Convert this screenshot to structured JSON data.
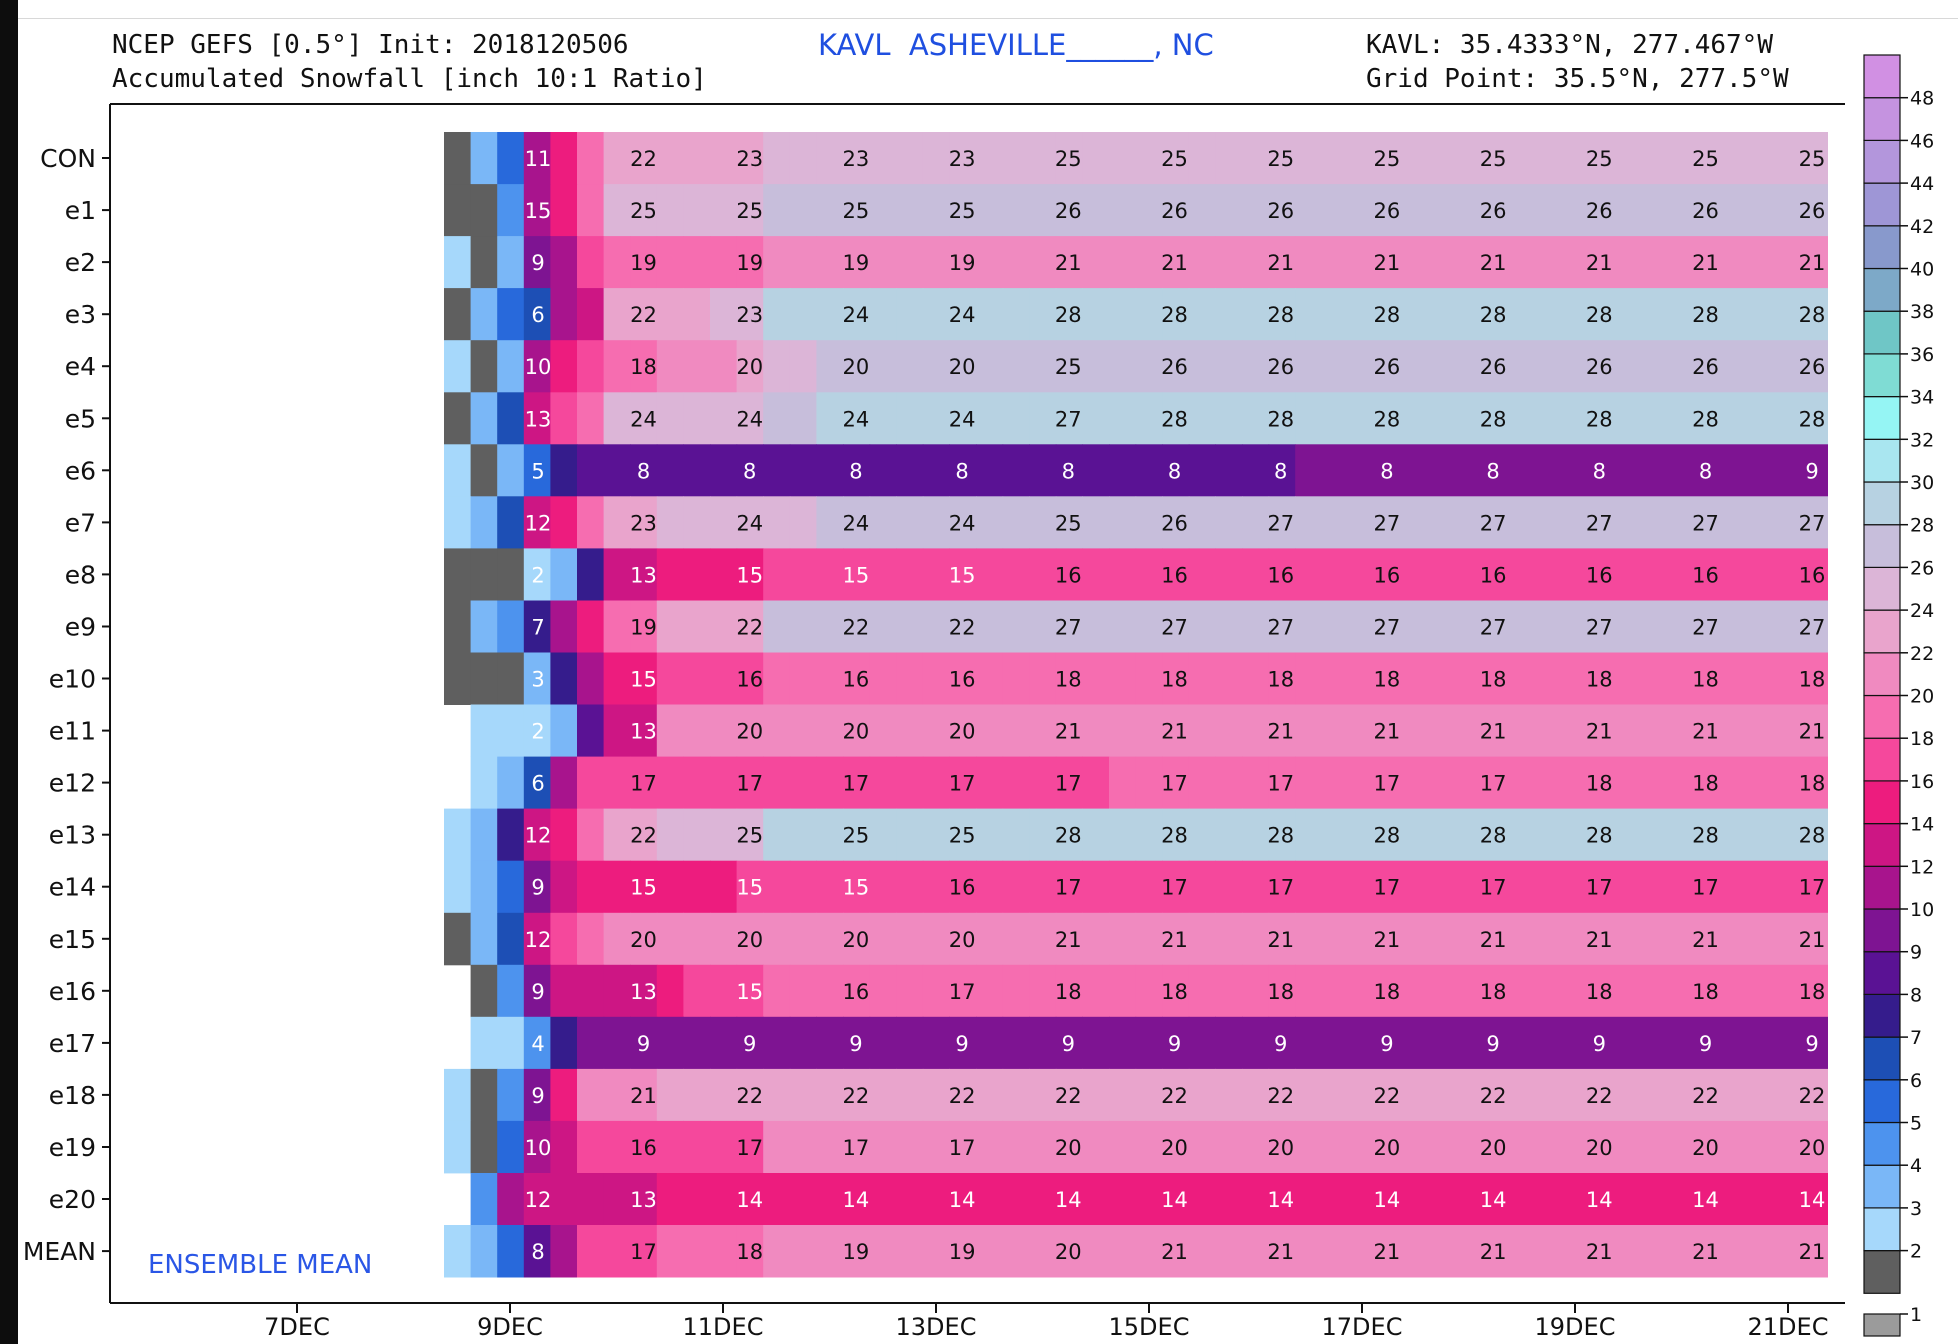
{
  "header": {
    "model_line": "NCEP GEFS [0.5°] Init: 2018120506",
    "variable_line": "Accumulated Snowfall [inch 10:1 Ratio]",
    "station": "KAVL  ASHEVILLE______, NC",
    "coords_line": "KAVL: 35.4333°N, 277.467°W",
    "grid_line": "Grid Point: 35.5°N, 277.5°W"
  },
  "chart_data": {
    "type": "heatmap",
    "title": "Accumulated Snowfall [inch 10:1 Ratio]",
    "annotation": "ENSEMBLE MEAN",
    "x_ticks": [
      "7DEC",
      "9DEC",
      "11DEC",
      "13DEC",
      "15DEC",
      "17DEC",
      "19DEC",
      "21DEC"
    ],
    "rows": [
      {
        "name": "CON",
        "cells": [
          1,
          3,
          5,
          11,
          14,
          18,
          22,
          22,
          23,
          23,
          23,
          23,
          25,
          25,
          25,
          25,
          25,
          25,
          25,
          25,
          25,
          25,
          25,
          25,
          25,
          25,
          25,
          25,
          25,
          25,
          25,
          25,
          25
        ]
      },
      {
        "name": "e1",
        "cells": [
          1,
          1,
          4,
          10,
          15,
          19,
          25,
          25,
          25,
          25,
          25,
          25,
          26,
          26,
          26,
          26,
          26,
          26,
          26,
          26,
          26,
          26,
          26,
          26,
          26,
          26,
          26,
          26,
          26,
          26,
          26,
          26,
          26
        ]
      },
      {
        "name": "e2",
        "cells": [
          2,
          1,
          3,
          9,
          11,
          16,
          19,
          19,
          19,
          19,
          19,
          19,
          21,
          21,
          21,
          21,
          21,
          21,
          21,
          21,
          21,
          21,
          21,
          21,
          21,
          21,
          21,
          21,
          21,
          21,
          21,
          21,
          21
        ]
      },
      {
        "name": "e3",
        "cells": [
          1,
          3,
          5,
          6,
          10,
          12,
          22,
          22,
          23,
          23,
          24,
          24,
          28,
          28,
          28,
          28,
          28,
          28,
          28,
          28,
          28,
          28,
          28,
          28,
          28,
          28,
          28,
          28,
          28,
          28,
          28,
          28,
          28
        ]
      },
      {
        "name": "e4",
        "cells": [
          2,
          1,
          3,
          10,
          14,
          16,
          18,
          18,
          20,
          20,
          20,
          22,
          25,
          25,
          26,
          26,
          26,
          26,
          26,
          26,
          26,
          26,
          26,
          26,
          26,
          26,
          26,
          26,
          26,
          26,
          26,
          26,
          26
        ]
      },
      {
        "name": "e5",
        "cells": [
          1,
          3,
          6,
          13,
          16,
          18,
          24,
          24,
          24,
          24,
          24,
          24,
          27,
          27,
          28,
          28,
          28,
          28,
          28,
          28,
          28,
          28,
          28,
          28,
          28,
          28,
          28,
          28,
          28,
          28,
          28,
          28,
          28
        ]
      },
      {
        "name": "e6",
        "cells": [
          2,
          1,
          3,
          5,
          7,
          8,
          8,
          8,
          8,
          8,
          8,
          8,
          8,
          8,
          8,
          8,
          8,
          8,
          8,
          8,
          8,
          8,
          8,
          8,
          8,
          8,
          8,
          8,
          8,
          8,
          8,
          8,
          9
        ]
      },
      {
        "name": "e7",
        "cells": [
          2,
          3,
          6,
          12,
          15,
          18,
          23,
          23,
          24,
          24,
          24,
          24,
          25,
          25,
          26,
          26,
          27,
          27,
          27,
          27,
          27,
          27,
          27,
          27,
          27,
          27,
          27,
          27,
          27,
          27,
          27,
          27,
          27
        ]
      },
      {
        "name": "e8",
        "cells": [
          1,
          1,
          1,
          2,
          3,
          7,
          13,
          13,
          15,
          15,
          15,
          15,
          16,
          16,
          16,
          16,
          16,
          16,
          16,
          16,
          16,
          16,
          16,
          16,
          16,
          16,
          16,
          16,
          16,
          16,
          16,
          16,
          16
        ]
      },
      {
        "name": "e9",
        "cells": [
          1,
          3,
          4,
          7,
          10,
          14,
          19,
          19,
          22,
          22,
          22,
          22,
          27,
          27,
          27,
          27,
          27,
          27,
          27,
          27,
          27,
          27,
          27,
          27,
          27,
          27,
          27,
          27,
          27,
          27,
          27,
          27,
          27
        ]
      },
      {
        "name": "e10",
        "cells": [
          1,
          1,
          1,
          3,
          7,
          11,
          15,
          15,
          16,
          16,
          16,
          16,
          18,
          18,
          18,
          18,
          18,
          18,
          18,
          18,
          18,
          18,
          18,
          18,
          18,
          18,
          18,
          18,
          18,
          18,
          18,
          18,
          18
        ]
      },
      {
        "name": "e11",
        "cells": [
          null,
          2,
          2,
          2,
          3,
          8,
          13,
          13,
          20,
          20,
          20,
          20,
          21,
          21,
          21,
          21,
          21,
          21,
          21,
          21,
          21,
          21,
          21,
          21,
          21,
          21,
          21,
          21,
          21,
          21,
          21,
          21,
          21
        ]
      },
      {
        "name": "e12",
        "cells": [
          null,
          2,
          3,
          6,
          11,
          17,
          17,
          17,
          17,
          17,
          17,
          17,
          17,
          17,
          17,
          17,
          17,
          17,
          17,
          17,
          17,
          17,
          17,
          17,
          17,
          18,
          18,
          18,
          18,
          18,
          18,
          18,
          18
        ]
      },
      {
        "name": "e13",
        "cells": [
          2,
          3,
          7,
          12,
          15,
          18,
          22,
          22,
          25,
          25,
          25,
          25,
          28,
          28,
          28,
          28,
          28,
          28,
          28,
          28,
          28,
          28,
          28,
          28,
          28,
          28,
          28,
          28,
          28,
          28,
          28,
          28,
          28
        ]
      },
      {
        "name": "e14",
        "cells": [
          2,
          3,
          5,
          9,
          12,
          15,
          15,
          15,
          15,
          15,
          15,
          16,
          17,
          17,
          17,
          17,
          17,
          17,
          17,
          17,
          17,
          17,
          17,
          17,
          17,
          17,
          17,
          17,
          17,
          17,
          17,
          17,
          17
        ]
      },
      {
        "name": "e15",
        "cells": [
          1,
          3,
          6,
          12,
          16,
          18,
          20,
          20,
          20,
          20,
          20,
          20,
          21,
          21,
          21,
          21,
          21,
          21,
          21,
          21,
          21,
          21,
          21,
          21,
          21,
          21,
          21,
          21,
          21,
          21,
          21,
          21,
          21
        ]
      },
      {
        "name": "e16",
        "cells": [
          null,
          1,
          4,
          9,
          12,
          12,
          13,
          13,
          15,
          16,
          16,
          17,
          18,
          18,
          18,
          18,
          18,
          18,
          18,
          18,
          18,
          18,
          18,
          18,
          18,
          18,
          18,
          18,
          18,
          18,
          18,
          18,
          18
        ]
      },
      {
        "name": "e17",
        "cells": [
          null,
          2,
          2,
          4,
          7,
          9,
          9,
          9,
          9,
          9,
          9,
          9,
          9,
          9,
          9,
          9,
          9,
          9,
          9,
          9,
          9,
          9,
          9,
          9,
          9,
          9,
          9,
          9,
          9,
          9,
          9,
          9,
          9
        ]
      },
      {
        "name": "e18",
        "cells": [
          2,
          1,
          4,
          9,
          15,
          20,
          21,
          21,
          22,
          22,
          22,
          22,
          22,
          22,
          22,
          22,
          22,
          22,
          22,
          22,
          22,
          22,
          22,
          22,
          22,
          22,
          22,
          22,
          22,
          22,
          22,
          22,
          22
        ]
      },
      {
        "name": "e19",
        "cells": [
          2,
          1,
          5,
          10,
          13,
          16,
          16,
          16,
          17,
          17,
          17,
          17,
          20,
          20,
          20,
          20,
          20,
          20,
          20,
          20,
          20,
          20,
          20,
          20,
          20,
          20,
          20,
          20,
          20,
          20,
          20,
          20,
          20
        ]
      },
      {
        "name": "e20",
        "cells": [
          null,
          4,
          10,
          12,
          12,
          13,
          13,
          13,
          14,
          14,
          14,
          14,
          14,
          14,
          14,
          14,
          14,
          14,
          14,
          14,
          14,
          14,
          14,
          14,
          14,
          14,
          14,
          14,
          14,
          14,
          14,
          14,
          14
        ]
      },
      {
        "name": "MEAN",
        "cells": [
          2,
          3,
          5,
          8,
          11,
          16,
          17,
          17,
          18,
          18,
          19,
          19,
          20,
          20,
          21,
          21,
          21,
          21,
          21,
          21,
          21,
          21,
          21,
          21,
          21,
          21,
          21,
          21,
          21,
          21,
          21,
          21,
          21
        ]
      }
    ],
    "labels": [
      [
        11,
        22,
        23,
        23,
        23,
        25,
        25,
        25,
        25,
        25,
        25,
        25,
        25
      ],
      [
        15,
        25,
        25,
        25,
        25,
        26,
        26,
        26,
        26,
        26,
        26,
        26,
        26
      ],
      [
        9,
        19,
        19,
        19,
        19,
        21,
        21,
        21,
        21,
        21,
        21,
        21,
        21
      ],
      [
        6,
        22,
        23,
        24,
        24,
        28,
        28,
        28,
        28,
        28,
        28,
        28,
        28
      ],
      [
        10,
        18,
        20,
        20,
        20,
        25,
        26,
        26,
        26,
        26,
        26,
        26,
        26
      ],
      [
        13,
        24,
        24,
        24,
        24,
        27,
        28,
        28,
        28,
        28,
        28,
        28,
        28
      ],
      [
        5,
        8,
        8,
        8,
        8,
        8,
        8,
        8,
        8,
        8,
        8,
        8,
        9
      ],
      [
        12,
        23,
        24,
        24,
        24,
        25,
        26,
        27,
        27,
        27,
        27,
        27,
        27
      ],
      [
        2,
        13,
        15,
        15,
        15,
        16,
        16,
        16,
        16,
        16,
        16,
        16,
        16
      ],
      [
        7,
        19,
        22,
        22,
        22,
        27,
        27,
        27,
        27,
        27,
        27,
        27,
        27
      ],
      [
        3,
        15,
        16,
        16,
        16,
        18,
        18,
        18,
        18,
        18,
        18,
        18,
        18
      ],
      [
        2,
        13,
        20,
        20,
        20,
        21,
        21,
        21,
        21,
        21,
        21,
        21,
        21
      ],
      [
        6,
        17,
        17,
        17,
        17,
        17,
        17,
        17,
        17,
        17,
        18,
        18,
        18
      ],
      [
        12,
        22,
        25,
        25,
        25,
        28,
        28,
        28,
        28,
        28,
        28,
        28,
        28
      ],
      [
        9,
        15,
        15,
        15,
        16,
        17,
        17,
        17,
        17,
        17,
        17,
        17,
        17
      ],
      [
        12,
        20,
        20,
        20,
        20,
        21,
        21,
        21,
        21,
        21,
        21,
        21,
        21
      ],
      [
        9,
        13,
        15,
        16,
        17,
        18,
        18,
        18,
        18,
        18,
        18,
        18,
        18
      ],
      [
        4,
        9,
        9,
        9,
        9,
        9,
        9,
        9,
        9,
        9,
        9,
        9,
        9
      ],
      [
        9,
        21,
        22,
        22,
        22,
        22,
        22,
        22,
        22,
        22,
        22,
        22,
        22
      ],
      [
        10,
        16,
        17,
        17,
        17,
        20,
        20,
        20,
        20,
        20,
        20,
        20,
        20
      ],
      [
        12,
        13,
        14,
        14,
        14,
        14,
        14,
        14,
        14,
        14,
        14,
        14,
        14
      ],
      [
        8,
        17,
        18,
        19,
        19,
        20,
        21,
        21,
        21,
        21,
        21,
        21,
        21
      ]
    ],
    "colorbar": {
      "levels": [
        1,
        2,
        3,
        4,
        5,
        6,
        7,
        8,
        9,
        10,
        12,
        14,
        16,
        18,
        20,
        22,
        24,
        26,
        28,
        30,
        32,
        34,
        36,
        38,
        40,
        42,
        44,
        46,
        48
      ],
      "colors": [
        "#9b9b9b",
        "#5f5f5f",
        "#a6d8fb",
        "#7ab7f7",
        "#4d93ee",
        "#2869db",
        "#1d4fb5",
        "#351c8c",
        "#5a1294",
        "#7e1492",
        "#a8148d",
        "#cd1684",
        "#ed1c7e",
        "#f5489c",
        "#f66db0",
        "#f08ac0",
        "#e9a4cc",
        "#dcb5d7",
        "#c7bedb",
        "#b7d2e2",
        "#a9e6f0",
        "#95f5f4",
        "#7fdcd4",
        "#6fc6c6",
        "#7da9c8",
        "#8899cc",
        "#9e96d6",
        "#b396dc",
        "#c593e0",
        "#d190e3"
      ]
    }
  }
}
